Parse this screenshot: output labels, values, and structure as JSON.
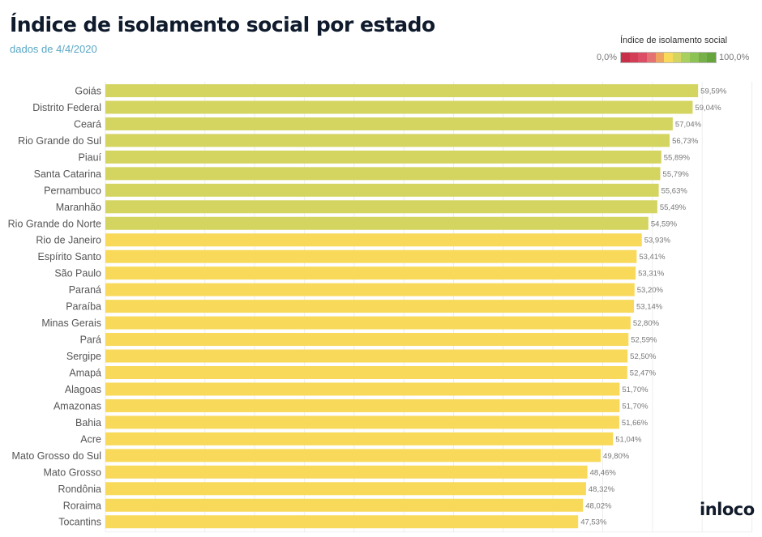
{
  "header": {
    "title": "Índice de isolamento social por estado",
    "subtitle": "dados de 4/4/2020",
    "logo": "inloco"
  },
  "legend": {
    "title": "Índice de isolamento social",
    "min_label": "0,0%",
    "max_label": "100,0%",
    "colors": [
      "#c8304a",
      "#d33d55",
      "#dc4e66",
      "#e47272",
      "#eea460",
      "#f8d95a",
      "#d4d461",
      "#a9cf5f",
      "#8dc255",
      "#77b048",
      "#65a53b"
    ]
  },
  "chart_data": {
    "type": "bar",
    "orientation": "horizontal",
    "title": "Índice de isolamento social por estado",
    "subtitle": "dados de 4/4/2020",
    "xlabel": "",
    "ylabel": "",
    "xlim": [
      0,
      65
    ],
    "grid_step": 5,
    "grid": true,
    "legend": "top-right",
    "color_scale": {
      "min": 0,
      "max": 100,
      "label": "Índice de isolamento social"
    },
    "categories": [
      "Goiás",
      "Distrito Federal",
      "Ceará",
      "Rio Grande do Sul",
      "Piauí",
      "Santa Catarina",
      "Pernambuco",
      "Maranhão",
      "Rio Grande do Norte",
      "Rio de Janeiro",
      "Espírito Santo",
      "São Paulo",
      "Paraná",
      "Paraíba",
      "Minas Gerais",
      "Pará",
      "Sergipe",
      "Amapá",
      "Alagoas",
      "Amazonas",
      "Bahia",
      "Acre",
      "Mato Grosso do Sul",
      "Mato Grosso",
      "Rondônia",
      "Roraima",
      "Tocantins"
    ],
    "values": [
      59.59,
      59.04,
      57.04,
      56.73,
      55.89,
      55.79,
      55.63,
      55.49,
      54.59,
      53.93,
      53.41,
      53.31,
      53.2,
      53.14,
      52.8,
      52.59,
      52.5,
      52.47,
      51.7,
      51.7,
      51.66,
      51.04,
      49.8,
      48.46,
      48.32,
      48.02,
      47.53
    ],
    "value_labels": [
      "59,59%",
      "59,04%",
      "57,04%",
      "56,73%",
      "55,89%",
      "55,79%",
      "55,63%",
      "55,49%",
      "54,59%",
      "53,93%",
      "53,41%",
      "53,31%",
      "53,20%",
      "53,14%",
      "52,80%",
      "52,59%",
      "52,50%",
      "52,47%",
      "51,70%",
      "51,70%",
      "51,66%",
      "51,04%",
      "49,80%",
      "48,46%",
      "48,32%",
      "48,02%",
      "47,53%"
    ],
    "bar_colors": {
      "high": "#d4d461",
      "mid": "#f8d95a",
      "threshold": 54.5
    }
  }
}
